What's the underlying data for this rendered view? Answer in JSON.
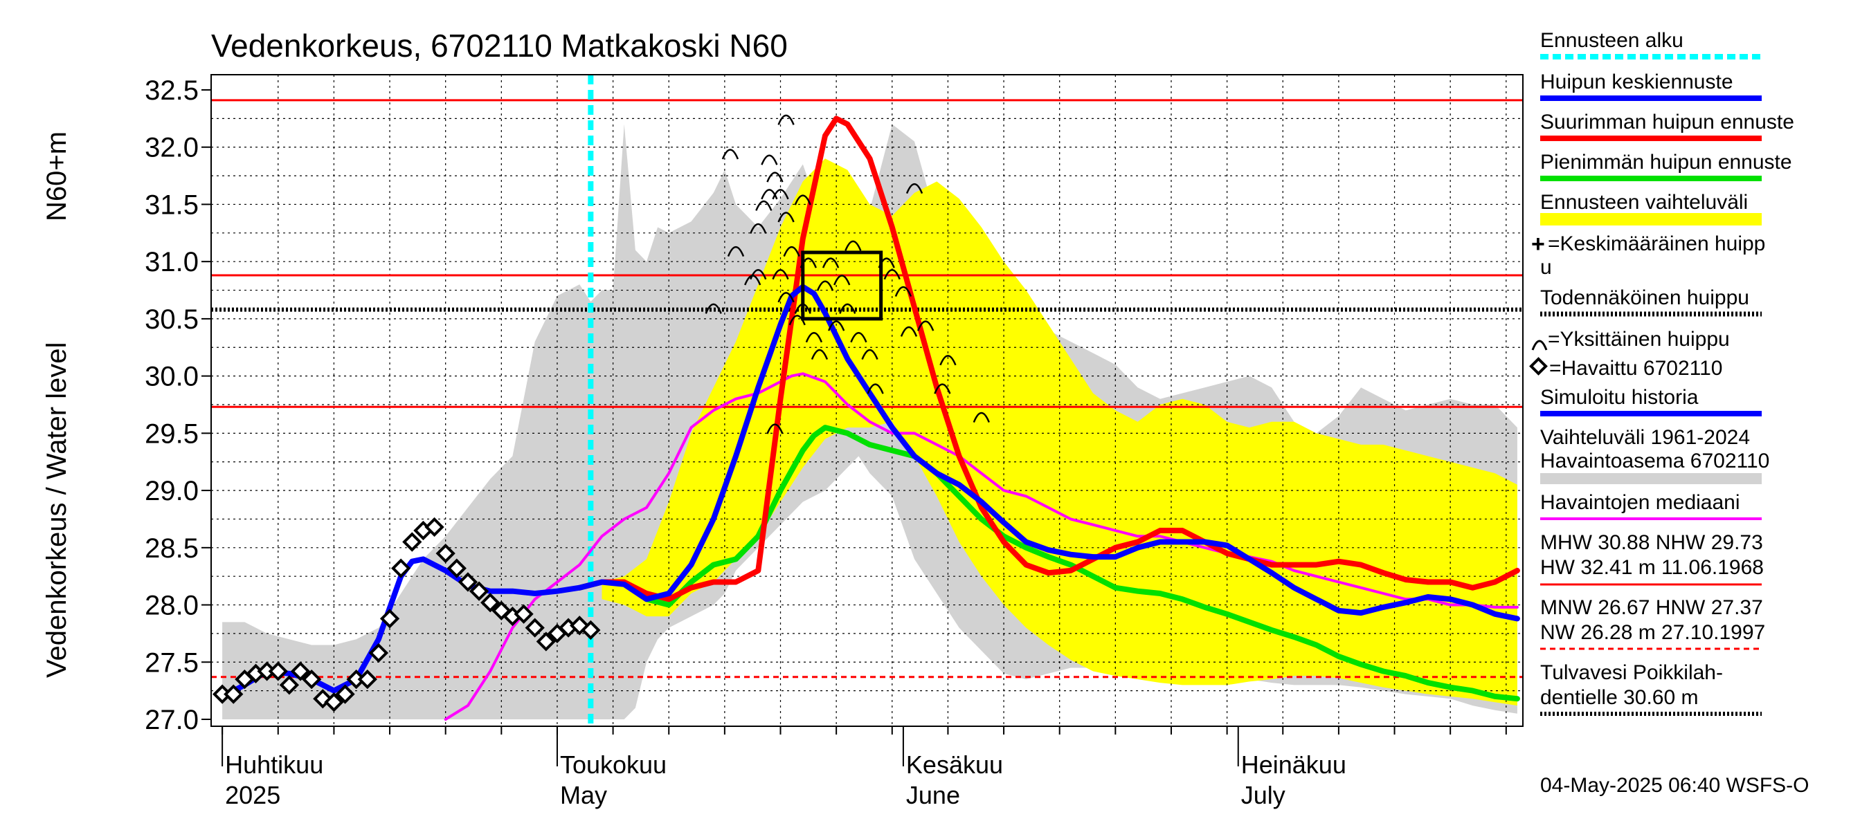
{
  "chart_data": {
    "type": "line",
    "title": "Vedenkorkeus, 6702110 Matkakoski N60",
    "ylabel_left": "Vedenkorkeus / Water level",
    "ylabel_unit": "N60+m",
    "ylim": [
      27.0,
      32.5
    ],
    "yticks": [
      "32.5",
      "32.0",
      "31.5",
      "31.0",
      "30.5",
      "30.0",
      "29.5",
      "29.0",
      "28.5",
      "28.0",
      "27.5",
      "27.0"
    ],
    "months": [
      {
        "fi": "Huhtikuu",
        "en": "2025",
        "day": 0
      },
      {
        "fi": "Toukokuu",
        "en": "May",
        "day": 30
      },
      {
        "fi": "Kesäkuu",
        "en": "June",
        "day": 61
      },
      {
        "fi": "Heinäkuu",
        "en": "July",
        "day": 91
      }
    ],
    "x_range_days": [
      -1,
      116.5
    ],
    "grid": true,
    "forecast_start_day": 33,
    "reference_lines": {
      "HW": 32.41,
      "MHW": 30.88,
      "NHW": 29.73,
      "MNW": 26.67,
      "HNW": 27.37,
      "NW": 26.28,
      "flood_threshold": 30.6,
      "probable_peak": 30.58
    },
    "peak_box": {
      "day_from": 52,
      "day_to": 59,
      "low": 30.5,
      "high": 31.08
    },
    "colors": {
      "hist_range": "#d2d2d2",
      "forecast_range": "#ffff00",
      "mean": "#0000ff",
      "max": "#ff0000",
      "min": "#00e000",
      "median": "#ff00ff",
      "forecast_start": "#00ffff",
      "ref_red": "#ff0000"
    },
    "series": [
      {
        "name": "Havaittu 6702110",
        "type": "observed",
        "x": [
          0,
          1,
          2,
          3,
          4,
          5,
          6,
          7,
          8,
          9,
          10,
          11,
          12,
          13,
          14,
          15,
          16,
          17,
          18,
          19,
          20,
          21,
          22,
          23,
          24,
          25,
          26,
          27,
          28,
          29,
          30,
          31,
          32,
          33
        ],
        "values": [
          27.22,
          27.22,
          27.35,
          27.4,
          27.42,
          27.42,
          27.3,
          27.42,
          27.35,
          27.18,
          27.15,
          27.22,
          27.35,
          27.35,
          27.58,
          27.88,
          28.32,
          28.55,
          28.65,
          28.68,
          28.45,
          28.32,
          28.2,
          28.12,
          28.02,
          27.95,
          27.9,
          27.92,
          27.8,
          27.68,
          27.75,
          27.8,
          27.82,
          27.78
        ]
      },
      {
        "name": "Simuloitu historia / Huipun keskiennuste",
        "type": "mean",
        "x": [
          0,
          2,
          4,
          6,
          8,
          10,
          12,
          14,
          16,
          17,
          18,
          20,
          22,
          24,
          26,
          28,
          30,
          32,
          34,
          36,
          38,
          40,
          42,
          44,
          46,
          48,
          50,
          51,
          52,
          53,
          54,
          56,
          58,
          60,
          62,
          64,
          66,
          68,
          70,
          72,
          74,
          76,
          78,
          80,
          82,
          84,
          86,
          88,
          90,
          92,
          94,
          96,
          98,
          100,
          102,
          104,
          106,
          108,
          110,
          112,
          114,
          116
        ],
        "values": [
          27.2,
          27.3,
          27.42,
          27.4,
          27.35,
          27.25,
          27.35,
          27.7,
          28.25,
          28.38,
          28.4,
          28.3,
          28.17,
          28.12,
          28.12,
          28.1,
          28.12,
          28.15,
          28.2,
          28.18,
          28.05,
          28.1,
          28.35,
          28.75,
          29.3,
          29.9,
          30.45,
          30.7,
          30.78,
          30.72,
          30.55,
          30.15,
          29.85,
          29.55,
          29.3,
          29.15,
          29.05,
          28.9,
          28.72,
          28.55,
          28.48,
          28.44,
          28.42,
          28.42,
          28.5,
          28.55,
          28.55,
          28.55,
          28.52,
          28.4,
          28.28,
          28.15,
          28.05,
          27.95,
          27.93,
          27.98,
          28.02,
          28.07,
          28.05,
          28.0,
          27.92,
          27.88
        ]
      },
      {
        "name": "Suurimman huipun ennuste",
        "type": "max",
        "x": [
          32,
          34,
          36,
          38,
          40,
          42,
          44,
          46,
          48,
          50,
          52,
          54,
          55,
          56,
          58,
          60,
          62,
          64,
          66,
          68,
          70,
          72,
          74,
          76,
          78,
          80,
          82,
          84,
          86,
          88,
          90,
          92,
          94,
          96,
          98,
          100,
          102,
          104,
          106,
          108,
          110,
          112,
          114,
          116
        ],
        "values": [
          28.15,
          28.2,
          28.2,
          28.1,
          28.05,
          28.15,
          28.2,
          28.2,
          28.3,
          29.8,
          31.2,
          32.1,
          32.25,
          32.2,
          31.9,
          31.3,
          30.6,
          29.9,
          29.3,
          28.85,
          28.55,
          28.35,
          28.28,
          28.3,
          28.4,
          28.5,
          28.55,
          28.65,
          28.65,
          28.55,
          28.45,
          28.4,
          28.35,
          28.35,
          28.35,
          28.38,
          28.35,
          28.28,
          28.22,
          28.2,
          28.2,
          28.15,
          28.2,
          28.3
        ]
      },
      {
        "name": "Pienimmän huipun ennuste",
        "type": "min",
        "x": [
          32,
          34,
          36,
          38,
          40,
          42,
          44,
          46,
          48,
          50,
          52,
          53,
          54,
          56,
          58,
          60,
          62,
          64,
          66,
          68,
          70,
          72,
          74,
          76,
          78,
          80,
          82,
          84,
          86,
          88,
          90,
          92,
          94,
          96,
          98,
          100,
          102,
          104,
          106,
          108,
          110,
          112,
          114,
          116
        ],
        "values": [
          28.15,
          28.2,
          28.2,
          28.05,
          28.0,
          28.2,
          28.35,
          28.4,
          28.6,
          29.0,
          29.35,
          29.48,
          29.55,
          29.5,
          29.4,
          29.35,
          29.3,
          29.15,
          28.95,
          28.75,
          28.6,
          28.5,
          28.42,
          28.35,
          28.25,
          28.15,
          28.12,
          28.1,
          28.05,
          27.98,
          27.92,
          27.85,
          27.78,
          27.72,
          27.65,
          27.55,
          27.48,
          27.42,
          27.38,
          27.32,
          27.28,
          27.25,
          27.2,
          27.18
        ]
      },
      {
        "name": "Havaintojen mediaani",
        "type": "median",
        "x": [
          20,
          22,
          24,
          26,
          28,
          30,
          32,
          34,
          36,
          38,
          40,
          42,
          44,
          46,
          48,
          50,
          51,
          52,
          54,
          56,
          58,
          60,
          62,
          64,
          66,
          68,
          70,
          72,
          74,
          76,
          78,
          80,
          82,
          84,
          86,
          88,
          90,
          92,
          94,
          96,
          98,
          100,
          102,
          104,
          106,
          108,
          110,
          112,
          114,
          116
        ],
        "values": [
          27.0,
          27.12,
          27.42,
          27.8,
          28.05,
          28.2,
          28.35,
          28.6,
          28.75,
          28.85,
          29.15,
          29.55,
          29.7,
          29.8,
          29.85,
          29.95,
          30.0,
          30.02,
          29.95,
          29.75,
          29.6,
          29.5,
          29.5,
          29.4,
          29.3,
          29.15,
          29.0,
          28.95,
          28.85,
          28.75,
          28.7,
          28.65,
          28.6,
          28.6,
          28.55,
          28.5,
          28.45,
          28.42,
          28.38,
          28.3,
          28.25,
          28.2,
          28.15,
          28.1,
          28.05,
          28.05,
          28.0,
          28.0,
          27.98,
          27.98
        ]
      }
    ],
    "hist_range": {
      "x": [
        0,
        2,
        4,
        6,
        8,
        10,
        12,
        14,
        16,
        18,
        20,
        22,
        24,
        26,
        28,
        30,
        32,
        33,
        34,
        35,
        36,
        37,
        38,
        39,
        40,
        42,
        44,
        45,
        46,
        48,
        50,
        52,
        54,
        56,
        57,
        58,
        60,
        62,
        64,
        66,
        68,
        70,
        72,
        74,
        76,
        78,
        80,
        82,
        84,
        86,
        88,
        90,
        92,
        94,
        96,
        98,
        100,
        102,
        104,
        106,
        108,
        110,
        112,
        114,
        116
      ],
      "high": [
        27.85,
        27.85,
        27.75,
        27.7,
        27.65,
        27.65,
        27.7,
        27.8,
        28.1,
        28.4,
        28.6,
        28.85,
        29.1,
        29.3,
        30.3,
        30.7,
        30.8,
        30.65,
        30.75,
        30.75,
        32.2,
        31.1,
        31.0,
        31.3,
        31.25,
        31.35,
        31.6,
        31.8,
        31.5,
        31.3,
        31.55,
        31.85,
        31.3,
        31.35,
        31.2,
        31.45,
        32.2,
        32.05,
        31.35,
        30.8,
        30.6,
        30.6,
        30.45,
        30.4,
        30.3,
        30.2,
        30.1,
        29.9,
        29.8,
        29.85,
        29.9,
        29.95,
        30.0,
        29.9,
        29.6,
        29.5,
        29.65,
        29.9,
        29.8,
        29.7,
        29.75,
        29.8,
        29.75,
        29.75,
        29.55
      ],
      "low": [
        27.0,
        27.0,
        27.0,
        27.0,
        27.0,
        27.0,
        27.0,
        27.0,
        27.0,
        27.0,
        27.0,
        27.0,
        27.0,
        27.0,
        27.0,
        27.0,
        27.0,
        27.0,
        27.0,
        27.0,
        27.0,
        27.1,
        27.5,
        27.7,
        27.8,
        27.9,
        28.0,
        28.1,
        28.3,
        28.5,
        28.7,
        28.9,
        29.0,
        29.2,
        29.3,
        29.15,
        28.95,
        28.4,
        28.1,
        27.8,
        27.6,
        27.4,
        27.35,
        27.4,
        27.45,
        27.45,
        27.5,
        27.55,
        27.55,
        27.5,
        27.45,
        27.4,
        27.35,
        27.32,
        27.3,
        27.3,
        27.3,
        27.28,
        27.25,
        27.22,
        27.2,
        27.18,
        27.12,
        27.08,
        27.05
      ]
    },
    "forecast_range": {
      "x": [
        34,
        36,
        38,
        40,
        42,
        44,
        46,
        48,
        50,
        52,
        54,
        56,
        58,
        60,
        62,
        64,
        66,
        68,
        70,
        72,
        74,
        76,
        78,
        80,
        82,
        84,
        86,
        88,
        90,
        92,
        94,
        96,
        98,
        100,
        102,
        104,
        106,
        108,
        110,
        112,
        114,
        116
      ],
      "high": [
        28.2,
        28.25,
        28.4,
        28.9,
        29.5,
        29.9,
        30.3,
        30.8,
        31.3,
        31.7,
        31.9,
        31.8,
        31.5,
        31.4,
        31.6,
        31.7,
        31.55,
        31.3,
        31.0,
        30.75,
        30.45,
        30.15,
        29.85,
        29.7,
        29.6,
        29.75,
        29.8,
        29.75,
        29.6,
        29.55,
        29.6,
        29.6,
        29.5,
        29.45,
        29.4,
        29.4,
        29.35,
        29.3,
        29.25,
        29.2,
        29.15,
        29.05
      ],
      "low": [
        28.05,
        28.0,
        27.9,
        27.9,
        28.1,
        28.2,
        28.4,
        28.6,
        28.9,
        29.2,
        29.45,
        29.55,
        29.55,
        29.6,
        29.3,
        28.95,
        28.55,
        28.25,
        28.0,
        27.8,
        27.65,
        27.52,
        27.42,
        27.38,
        27.35,
        27.32,
        27.3,
        27.3,
        27.3,
        27.33,
        27.35,
        27.38,
        27.38,
        27.36,
        27.32,
        27.28,
        27.25,
        27.22,
        27.2,
        27.18,
        27.15,
        27.12
      ]
    },
    "single_peaks": [
      {
        "day": 49.5,
        "value": 29.55
      },
      {
        "day": 44,
        "value": 30.6
      },
      {
        "day": 46,
        "value": 31.1
      },
      {
        "day": 47.5,
        "value": 30.85
      },
      {
        "day": 48,
        "value": 30.9
      },
      {
        "day": 48.5,
        "value": 31.5
      },
      {
        "day": 49,
        "value": 31.6
      },
      {
        "day": 49.5,
        "value": 31.75
      },
      {
        "day": 50,
        "value": 31.6
      },
      {
        "day": 50.5,
        "value": 31.4
      },
      {
        "day": 49,
        "value": 31.9
      },
      {
        "day": 48,
        "value": 31.3
      },
      {
        "day": 50,
        "value": 30.9
      },
      {
        "day": 50.5,
        "value": 30.7
      },
      {
        "day": 51,
        "value": 31.1
      },
      {
        "day": 51.5,
        "value": 30.5
      },
      {
        "day": 52,
        "value": 30.6
      },
      {
        "day": 52.5,
        "value": 31.0
      },
      {
        "day": 53,
        "value": 30.35
      },
      {
        "day": 53.5,
        "value": 30.2
      },
      {
        "day": 54,
        "value": 30.8
      },
      {
        "day": 54.5,
        "value": 31.0
      },
      {
        "day": 55,
        "value": 30.45
      },
      {
        "day": 55.5,
        "value": 30.85
      },
      {
        "day": 56,
        "value": 30.6
      },
      {
        "day": 56.5,
        "value": 31.15
      },
      {
        "day": 57,
        "value": 30.35
      },
      {
        "day": 58,
        "value": 30.2
      },
      {
        "day": 58.5,
        "value": 29.9
      },
      {
        "day": 59.5,
        "value": 31.0
      },
      {
        "day": 60,
        "value": 30.9
      },
      {
        "day": 61,
        "value": 30.75
      },
      {
        "day": 61.5,
        "value": 30.4
      },
      {
        "day": 62,
        "value": 31.65
      },
      {
        "day": 63,
        "value": 30.45
      },
      {
        "day": 64.5,
        "value": 29.9
      },
      {
        "day": 65,
        "value": 30.15
      },
      {
        "day": 68,
        "value": 29.65
      },
      {
        "day": 50.5,
        "value": 32.25
      },
      {
        "day": 45.5,
        "value": 31.95
      },
      {
        "day": 52,
        "value": 31.55
      }
    ]
  },
  "legend": {
    "forecast_start": "Ennusteen alku",
    "mean_forecast": "Huipun keskiennuste",
    "max_forecast": "Suurimman huipun ennuste",
    "min_forecast": "Pienimmän huipun ennuste",
    "forecast_range": "Ennusteen vaihteluväli",
    "avg_peak_1": "=Keskimääräinen huipp",
    "avg_peak_2": "u",
    "probable_peak": "Todennäköinen huippu",
    "single_peak": "=Yksittäinen huippu",
    "observed": "=Havaittu 6702110",
    "simulated": "Simuloitu historia",
    "hist_range_1": "Vaihteluväli 1961-2024",
    "hist_range_2": " Havaintoasema 6702110",
    "median": "Havaintojen mediaani",
    "stats_1": "MHW  30.88 NHW  29.73",
    "stats_2": "HW  32.41 m 11.06.1968",
    "stats_3": "MNW  26.67 HNW  27.37",
    "stats_4": "NW  26.28 m 27.10.1997",
    "flood_1": "Tulvavesi Poikkilah-",
    "flood_2": "dentielle 30.60 m"
  },
  "footer": "04-May-2025 06:40 WSFS-O"
}
